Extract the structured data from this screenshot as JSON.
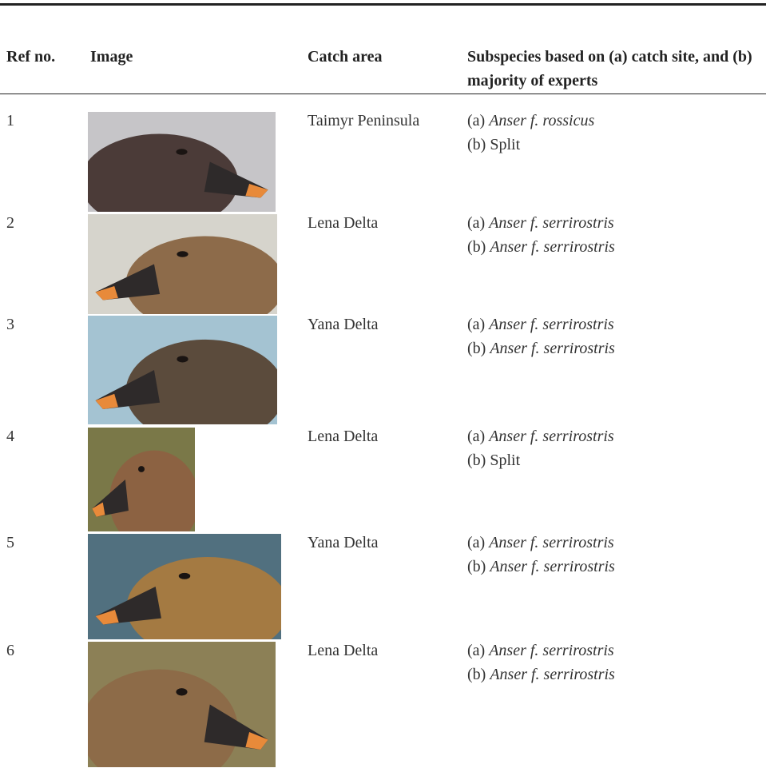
{
  "table": {
    "header": [
      "Ref no.",
      "Image",
      "Catch area",
      "Subspecies based on (a) catch site, and (b) majority of experts"
    ],
    "rows": [
      {
        "ref": "1",
        "area": "Taimyr Peninsula",
        "a_label": "(a)",
        "a": "Anser f. rossicus",
        "b_label": "(b)",
        "b": "Split"
      },
      {
        "ref": "2",
        "area": "Lena Delta",
        "a_label": "(a)",
        "a": "Anser f. serrirostris",
        "b_label": "(b)",
        "b": "Anser f. serrirostris"
      },
      {
        "ref": "3",
        "area": "Yana Delta",
        "a_label": "(a)",
        "a": "Anser f. serrirostris",
        "b_label": "(b)",
        "b": "Anser f. serrirostris"
      },
      {
        "ref": "4",
        "area": "Lena Delta",
        "a_label": "(a)",
        "a": "Anser f. serrirostris",
        "b_label": "(b)",
        "b": "Split"
      },
      {
        "ref": "5",
        "area": "Yana Delta",
        "a_label": "(a)",
        "a": "Anser f. serrirostris",
        "b_label": "(b)",
        "b": "Anser f. serrirostris"
      },
      {
        "ref": "6",
        "area": "Lena Delta",
        "a_label": "(a)",
        "a": "Anser f. serrirostris",
        "b_label": "(b)",
        "b": "Anser f. serrirostris"
      }
    ]
  }
}
